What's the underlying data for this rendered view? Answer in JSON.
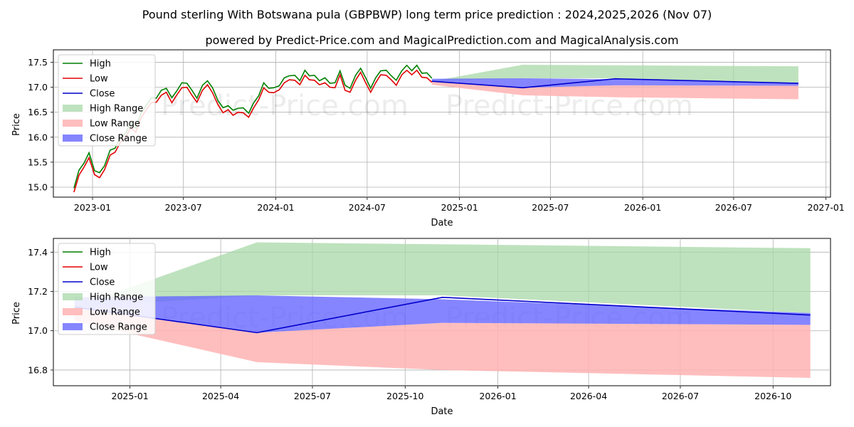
{
  "title": "Pound sterling With Botswana pula (GBPBWP) long term price prediction : 2024,2025,2026 (Nov 07)",
  "subtitle": "powered by Predict-Price.com and MagicalPrediction.com and MagicalAnalysis.com",
  "watermark": "Predict-Price.com",
  "colors": {
    "high": "#008000",
    "low": "#e00000",
    "close": "#0000cc",
    "high_range": "#a8d8a8",
    "low_range": "#ffb3b3",
    "close_range": "#6666ff",
    "grid": "#b0b0b0"
  },
  "chart_data": [
    {
      "type": "line",
      "name": "full-history-chart",
      "xlabel": "Date",
      "ylabel": "Price",
      "xlim": [
        "2022-10-15",
        "2027-01-10"
      ],
      "ylim": [
        14.8,
        17.75
      ],
      "xticks": [
        "2023-01",
        "2023-07",
        "2024-01",
        "2024-07",
        "2025-01",
        "2025-07",
        "2026-01",
        "2026-07",
        "2027-01"
      ],
      "yticks": [
        "15.0",
        "15.5",
        "16.0",
        "16.5",
        "17.0",
        "17.5"
      ],
      "legend": [
        "High",
        "Low",
        "Close",
        "High Range",
        "Low Range",
        "Close Range"
      ],
      "legend_position": "upper-left",
      "history": {
        "dates": [
          "2022-11-25",
          "2022-12-05",
          "2022-12-15",
          "2022-12-25",
          "2023-01-05",
          "2023-01-15",
          "2023-01-25",
          "2023-02-05",
          "2023-02-15",
          "2023-02-25",
          "2023-03-08",
          "2023-03-18",
          "2023-03-28",
          "2023-04-08",
          "2023-04-18",
          "2023-04-28",
          "2023-05-08",
          "2023-05-18",
          "2023-05-28",
          "2023-06-08",
          "2023-06-18",
          "2023-06-28",
          "2023-07-08",
          "2023-07-18",
          "2023-07-28",
          "2023-08-08",
          "2023-08-18",
          "2023-08-28",
          "2023-09-08",
          "2023-09-18",
          "2023-09-28",
          "2023-10-08",
          "2023-10-18",
          "2023-10-28",
          "2023-11-08",
          "2023-11-18",
          "2023-11-28",
          "2023-12-08",
          "2023-12-18",
          "2023-12-28",
          "2024-01-08",
          "2024-01-18",
          "2024-01-28",
          "2024-02-08",
          "2024-02-18",
          "2024-02-28",
          "2024-03-08",
          "2024-03-18",
          "2024-03-28",
          "2024-04-08",
          "2024-04-18",
          "2024-04-28",
          "2024-05-08",
          "2024-05-18",
          "2024-05-28",
          "2024-06-08",
          "2024-06-18",
          "2024-06-28",
          "2024-07-08",
          "2024-07-18",
          "2024-07-28",
          "2024-08-08",
          "2024-08-18",
          "2024-08-28",
          "2024-09-08",
          "2024-09-18",
          "2024-09-28",
          "2024-10-08",
          "2024-10-18",
          "2024-10-28",
          "2024-11-07"
        ],
        "close": [
          14.95,
          15.25,
          15.45,
          15.6,
          15.3,
          15.2,
          15.4,
          15.65,
          15.75,
          15.9,
          16.05,
          16.2,
          16.15,
          16.4,
          16.6,
          16.7,
          16.75,
          16.85,
          16.95,
          16.7,
          16.9,
          17.0,
          17.05,
          16.85,
          16.75,
          16.95,
          17.1,
          16.9,
          16.7,
          16.5,
          16.6,
          16.45,
          16.55,
          16.5,
          16.45,
          16.6,
          16.8,
          17.0,
          16.95,
          16.9,
          17.0,
          17.1,
          17.2,
          17.15,
          17.1,
          17.25,
          17.2,
          17.15,
          17.1,
          17.1,
          17.05,
          17.0,
          17.3,
          16.95,
          16.95,
          17.15,
          17.35,
          17.1,
          16.95,
          17.1,
          17.3,
          17.25,
          17.2,
          17.05,
          17.3,
          17.35,
          17.3,
          17.35,
          17.25,
          17.2,
          17.15
        ],
        "high_offset": 0.06,
        "low_offset": 0.06
      },
      "forecast": {
        "dates": [
          "2024-11-07",
          "2025-05-07",
          "2025-11-07",
          "2026-11-07"
        ],
        "close": [
          17.12,
          16.99,
          17.17,
          17.08
        ],
        "high_range_upper": [
          17.12,
          17.45,
          17.44,
          17.42
        ],
        "high_range_lower": [
          17.12,
          17.18,
          17.18,
          17.09
        ],
        "close_range_upper": [
          17.17,
          17.18,
          17.16,
          17.09
        ],
        "close_range_lower": [
          17.12,
          16.99,
          17.04,
          17.03
        ],
        "low_range_upper": [
          17.12,
          16.99,
          17.04,
          17.03
        ],
        "low_range_lower": [
          17.05,
          16.84,
          16.8,
          16.76
        ]
      }
    },
    {
      "type": "area",
      "name": "forecast-zoom-chart",
      "xlabel": "Date",
      "ylabel": "Price",
      "xlim": [
        "2024-10-17",
        "2026-11-27"
      ],
      "ylim": [
        16.72,
        17.47
      ],
      "xticks": [
        "2025-01",
        "2025-04",
        "2025-07",
        "2025-10",
        "2026-01",
        "2026-04",
        "2026-07",
        "2026-10"
      ],
      "yticks": [
        "16.8",
        "17.0",
        "17.2",
        "17.4"
      ],
      "legend": [
        "High",
        "Low",
        "Close",
        "High Range",
        "Low Range",
        "Close Range"
      ],
      "legend_position": "upper-left"
    }
  ]
}
